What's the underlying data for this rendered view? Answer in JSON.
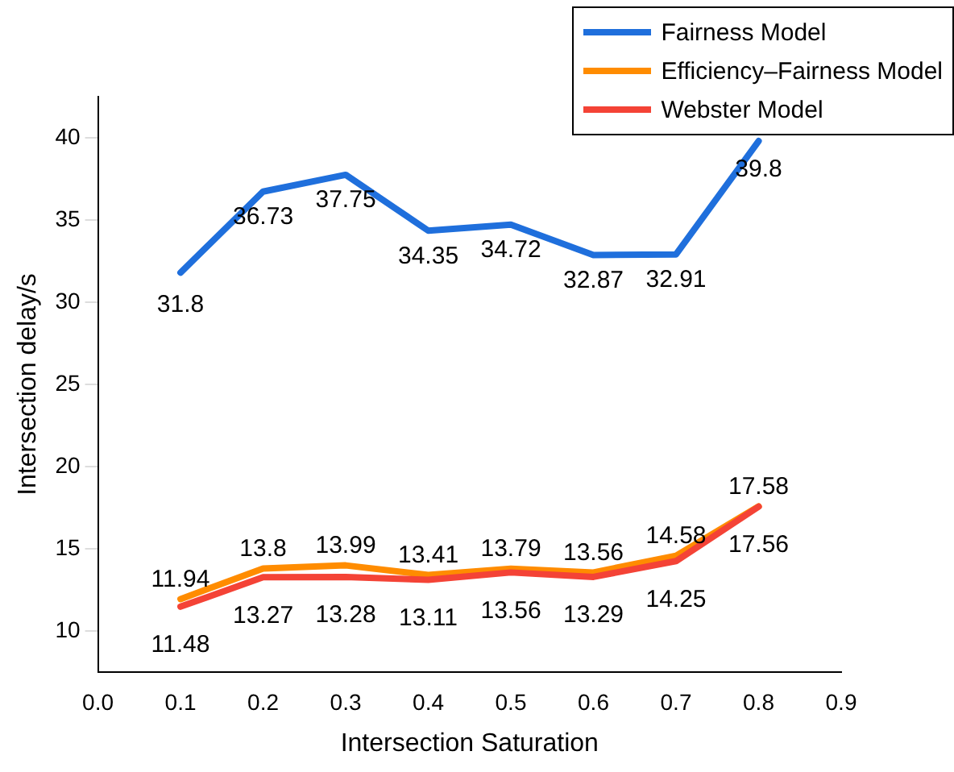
{
  "chart_data": {
    "type": "line",
    "xlabel": "Intersection Saturation",
    "ylabel": "Intersection delay/s",
    "x": [
      0.1,
      0.2,
      0.3,
      0.4,
      0.5,
      0.6,
      0.7,
      0.8
    ],
    "series": [
      {
        "name": "Fairness Model",
        "color": "#1f6fdc",
        "values": [
          31.8,
          36.73,
          37.75,
          34.35,
          34.72,
          32.87,
          32.91,
          39.8
        ]
      },
      {
        "name": "Efficiency–Fairness Model",
        "color": "#ff8c00",
        "values": [
          11.94,
          13.8,
          13.99,
          13.41,
          13.79,
          13.56,
          14.58,
          17.58
        ]
      },
      {
        "name": "Webster Model",
        "color": "#f44336",
        "values": [
          11.48,
          13.27,
          13.28,
          13.11,
          13.56,
          13.29,
          14.25,
          17.56
        ]
      }
    ],
    "xlim": [
      0,
      0.9
    ],
    "xticks": [
      {
        "value": 0,
        "label": "0.0"
      },
      0.1,
      0.2,
      0.3,
      0.4,
      0.5,
      0.6,
      0.7,
      0.8,
      0.9
    ],
    "ylim": [
      7.5,
      42.5
    ],
    "yticks": [
      10,
      15,
      20,
      25,
      30,
      35,
      40
    ],
    "grid": false,
    "legend": "top right",
    "marker": "none",
    "line_style": "solid",
    "data_labels": true
  }
}
